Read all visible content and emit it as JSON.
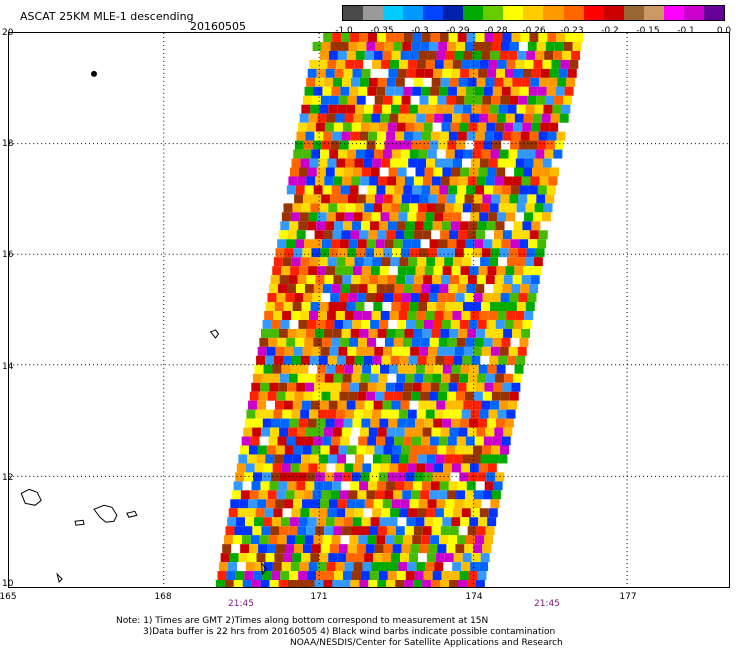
{
  "title": "ASCAT 25KM MLE-1 descending",
  "date": "20160505",
  "colorbar": {
    "colors": [
      "#4a4a4a",
      "#9a9a9a",
      "#00ccff",
      "#0099ff",
      "#0044ff",
      "#0022aa",
      "#00aa00",
      "#66cc00",
      "#ffff00",
      "#ffcc00",
      "#ff9900",
      "#ff6600",
      "#ff0000",
      "#cc0000",
      "#996633",
      "#cc9966",
      "#ff00ff",
      "#cc00cc",
      "#660099"
    ],
    "labels": [
      "-1.0",
      "-0.35",
      "-0.3",
      "-0.29",
      "-0.28",
      "-0.26",
      "-0.23",
      "-0.2",
      "-0.15",
      "-0.1",
      "0.0"
    ]
  },
  "axes": {
    "lat_ticks": [
      "20",
      "18",
      "16",
      "14",
      "12",
      "10"
    ],
    "lon_ticks": [
      "165",
      "168",
      "171",
      "174",
      "177"
    ]
  },
  "times": [
    "21:45",
    "21:45"
  ],
  "notes": {
    "line1": "Note: 1) Times are GMT 2)Times along bottom correspond to measurement at 15N",
    "line2": "3)Data buffer is 22 hrs from 20160505 4) Black wind barbs indicate possible contamination",
    "line3": "NOAA/NESDIS/Center for Satellite Applications and Research"
  },
  "map": {
    "swath_palette": [
      "#0033ff",
      "#0066ff",
      "#3399ff",
      "#00aa00",
      "#44bb00",
      "#ffff00",
      "#ffdd00",
      "#ffbb00",
      "#ff9900",
      "#ff6600",
      "#ff2200",
      "#cc0000",
      "#993300",
      "#cc00cc"
    ]
  }
}
